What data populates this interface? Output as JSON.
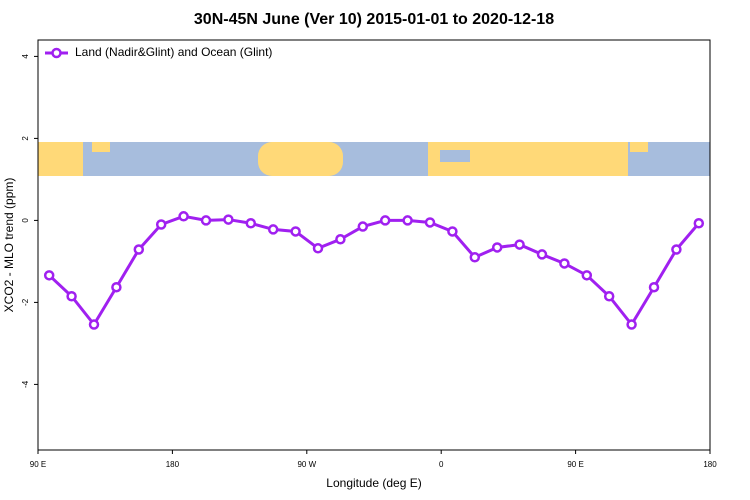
{
  "chart_data": {
    "type": "line",
    "title": "30N-45N June (Ver 10)   2015-01-01 to 2020-12-18",
    "x_label": "Longitude (deg E)",
    "y_label": "XCO2 - MLO trend (ppm)",
    "x": [
      97.5,
      112.5,
      127.5,
      142.5,
      157.5,
      172.5,
      187.5,
      202.5,
      217.5,
      232.5,
      247.5,
      262.5,
      277.5,
      292.5,
      307.5,
      322.5,
      337.5,
      352.5,
      367.5,
      382.5,
      397.5,
      412.5,
      427.5,
      442.5,
      457.5,
      472.5,
      487.5,
      502.5,
      517.5,
      532.5
    ],
    "series": [
      {
        "name": "Land (Nadir&Glint) and Ocean (Glint)",
        "color": "#a020f0",
        "values": [
          -1.34,
          -1.85,
          -2.54,
          -1.63,
          -0.71,
          -0.1,
          0.1,
          0.0,
          0.02,
          -0.07,
          -0.22,
          -0.27,
          -0.68,
          -0.46,
          -0.15,
          0.0,
          0.0,
          -0.05,
          -0.27,
          -0.9,
          -0.66,
          -0.59,
          -0.83,
          -1.05,
          -1.34,
          -1.85,
          -2.54,
          -1.63,
          -0.71,
          -0.07
        ]
      }
    ],
    "xlim": [
      90,
      540
    ],
    "xticks": [
      {
        "value": 90,
        "label": "90 E"
      },
      180,
      {
        "value": 270,
        "label": "90 W"
      },
      {
        "value": 360,
        "label": "0"
      },
      {
        "value": 450,
        "label": "90 E"
      },
      {
        "value": 540,
        "label": "180"
      }
    ],
    "ylim": [
      -5.6,
      4.4
    ],
    "yticks": [
      -4,
      -2,
      0,
      2,
      4
    ],
    "legend": "top-left"
  }
}
